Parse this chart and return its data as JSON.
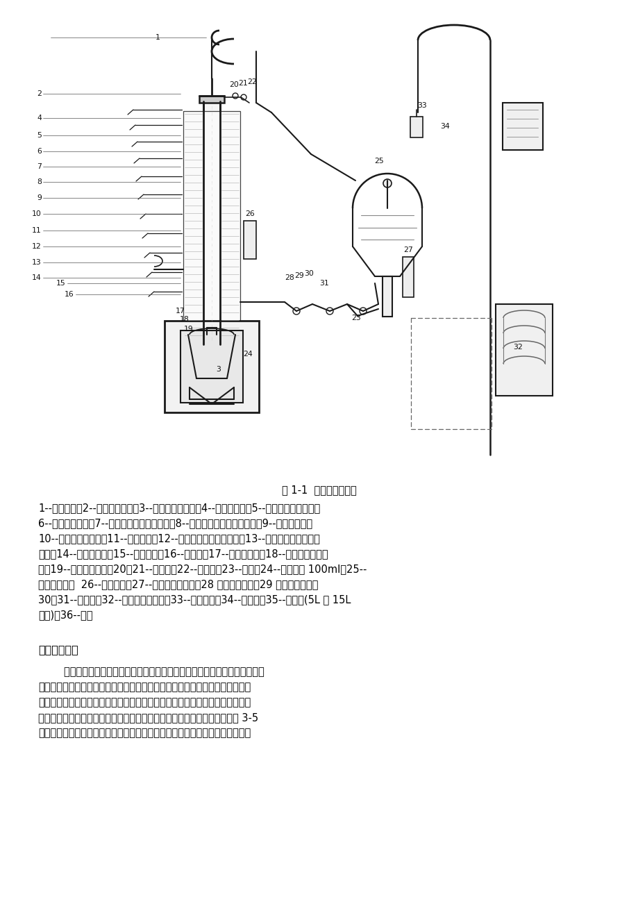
{
  "bg_color": "#ffffff",
  "fig_caption": "图 1-1  实沸点蒸馏装置",
  "caption_fontsize": 10.5,
  "body_text_lines": [
    "1--上测压管；2--定比器回流头；3--气相水银温度计；4--液封流出管；5--气相热电偶测温管；",
    "6--卷状多孔填料；7--上部塔内热电偶测温管；8--上部保温层热电偶测温管；9--保温层缠料；",
    "10--保温层电加热丝；11--保温套管；12--下部塔内热电偶测温管；13--下部保温层热电偶测",
    "温管；14--分馏塔塔柱；15--压油接管；16--压油管；17--伞状多孔筛；18--液相热电偶测温",
    "管；19--电炉升降机构；20、21--球形阀；22--冷凝管；23--弯头；24--接液量筒 100ml；25--",
    "真空接受器；  26--下测压管；27--气相水银温度计；28 一釜侧流出头；29 一釜测流出管；",
    "30、31--球形阀；32--真空接受器支架；33--冷凝水瓶；34--冷凝管；35--蒸馏釜(5L 和 15L",
    "两种)；36--电炉"
  ],
  "section_title": "三、操作步骤",
  "section_text_lines": [
    "        原油的实沸点蒸馏过程是间歇式的。也就是说，原油是一次加入的，而馏分",
    "则是随着馏出温度的升高，一个接一个取出的。这种方法也称分批操作法。在进",
    "行实沸点蒸馏操作时，为了使取得的数据可靠，则必须注意控制分离程度，简称",
    "分馏精确度。对分馏精确度影响最大的因素是馏出速度，一般保持在每分钟 3-5",
    "毫升。如馏出速度加快，则分馏精确度降低，致使轻组分尚未及时馏出而重组分"
  ],
  "text_fontsize": 10.5,
  "section_title_fontsize": 11.5
}
